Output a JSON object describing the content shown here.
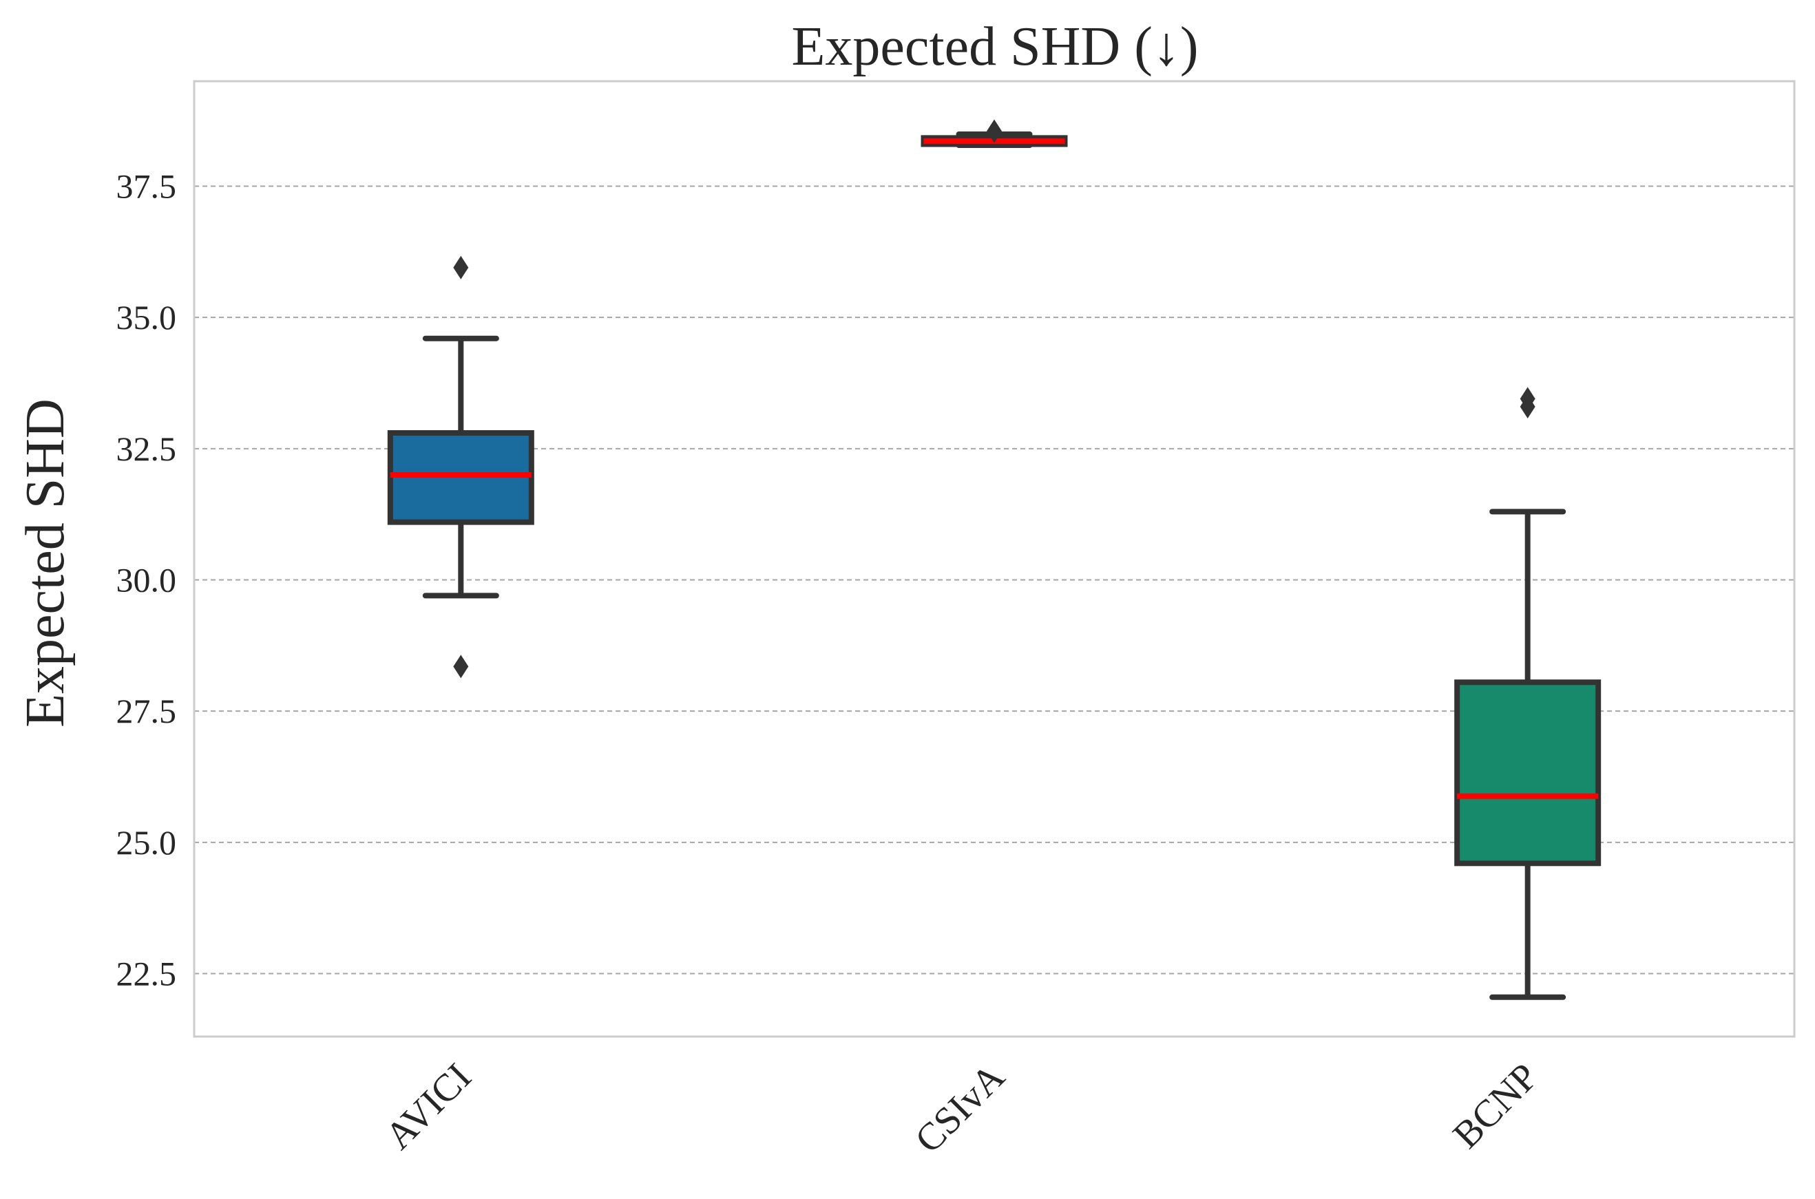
{
  "chart_data": {
    "type": "box",
    "title": "Expected SHD (↓)",
    "xlabel": "",
    "ylabel": "Expected SHD",
    "ylim": [
      21.3,
      39.5
    ],
    "yticks": [
      "22.5",
      "25.0",
      "27.5",
      "30.0",
      "32.5",
      "35.0",
      "37.5"
    ],
    "grid": "horizontal dashed",
    "categories": [
      "AVICI",
      "CSIvA",
      "BCNP"
    ],
    "boxes": [
      {
        "name": "AVICI",
        "whisker_low": 29.7,
        "q1": 31.1,
        "median": 32.0,
        "q3": 32.8,
        "whisker_high": 34.6,
        "outliers": [
          28.35,
          35.95
        ],
        "color": "#1a6b9e"
      },
      {
        "name": "CSIvA",
        "whisker_low": 38.28,
        "q1": 38.3,
        "median": 38.36,
        "q3": 38.42,
        "whisker_high": 38.49,
        "outliers": [
          38.55
        ],
        "color": "#1a6b9e"
      },
      {
        "name": "BCNP",
        "whisker_low": 22.05,
        "q1": 24.6,
        "median": 25.88,
        "q3": 28.05,
        "whisker_high": 31.3,
        "outliers": [
          33.3,
          33.45
        ],
        "color": "#168a6b"
      }
    ],
    "median_color": "#ff0000",
    "edge_color": "#333333"
  }
}
